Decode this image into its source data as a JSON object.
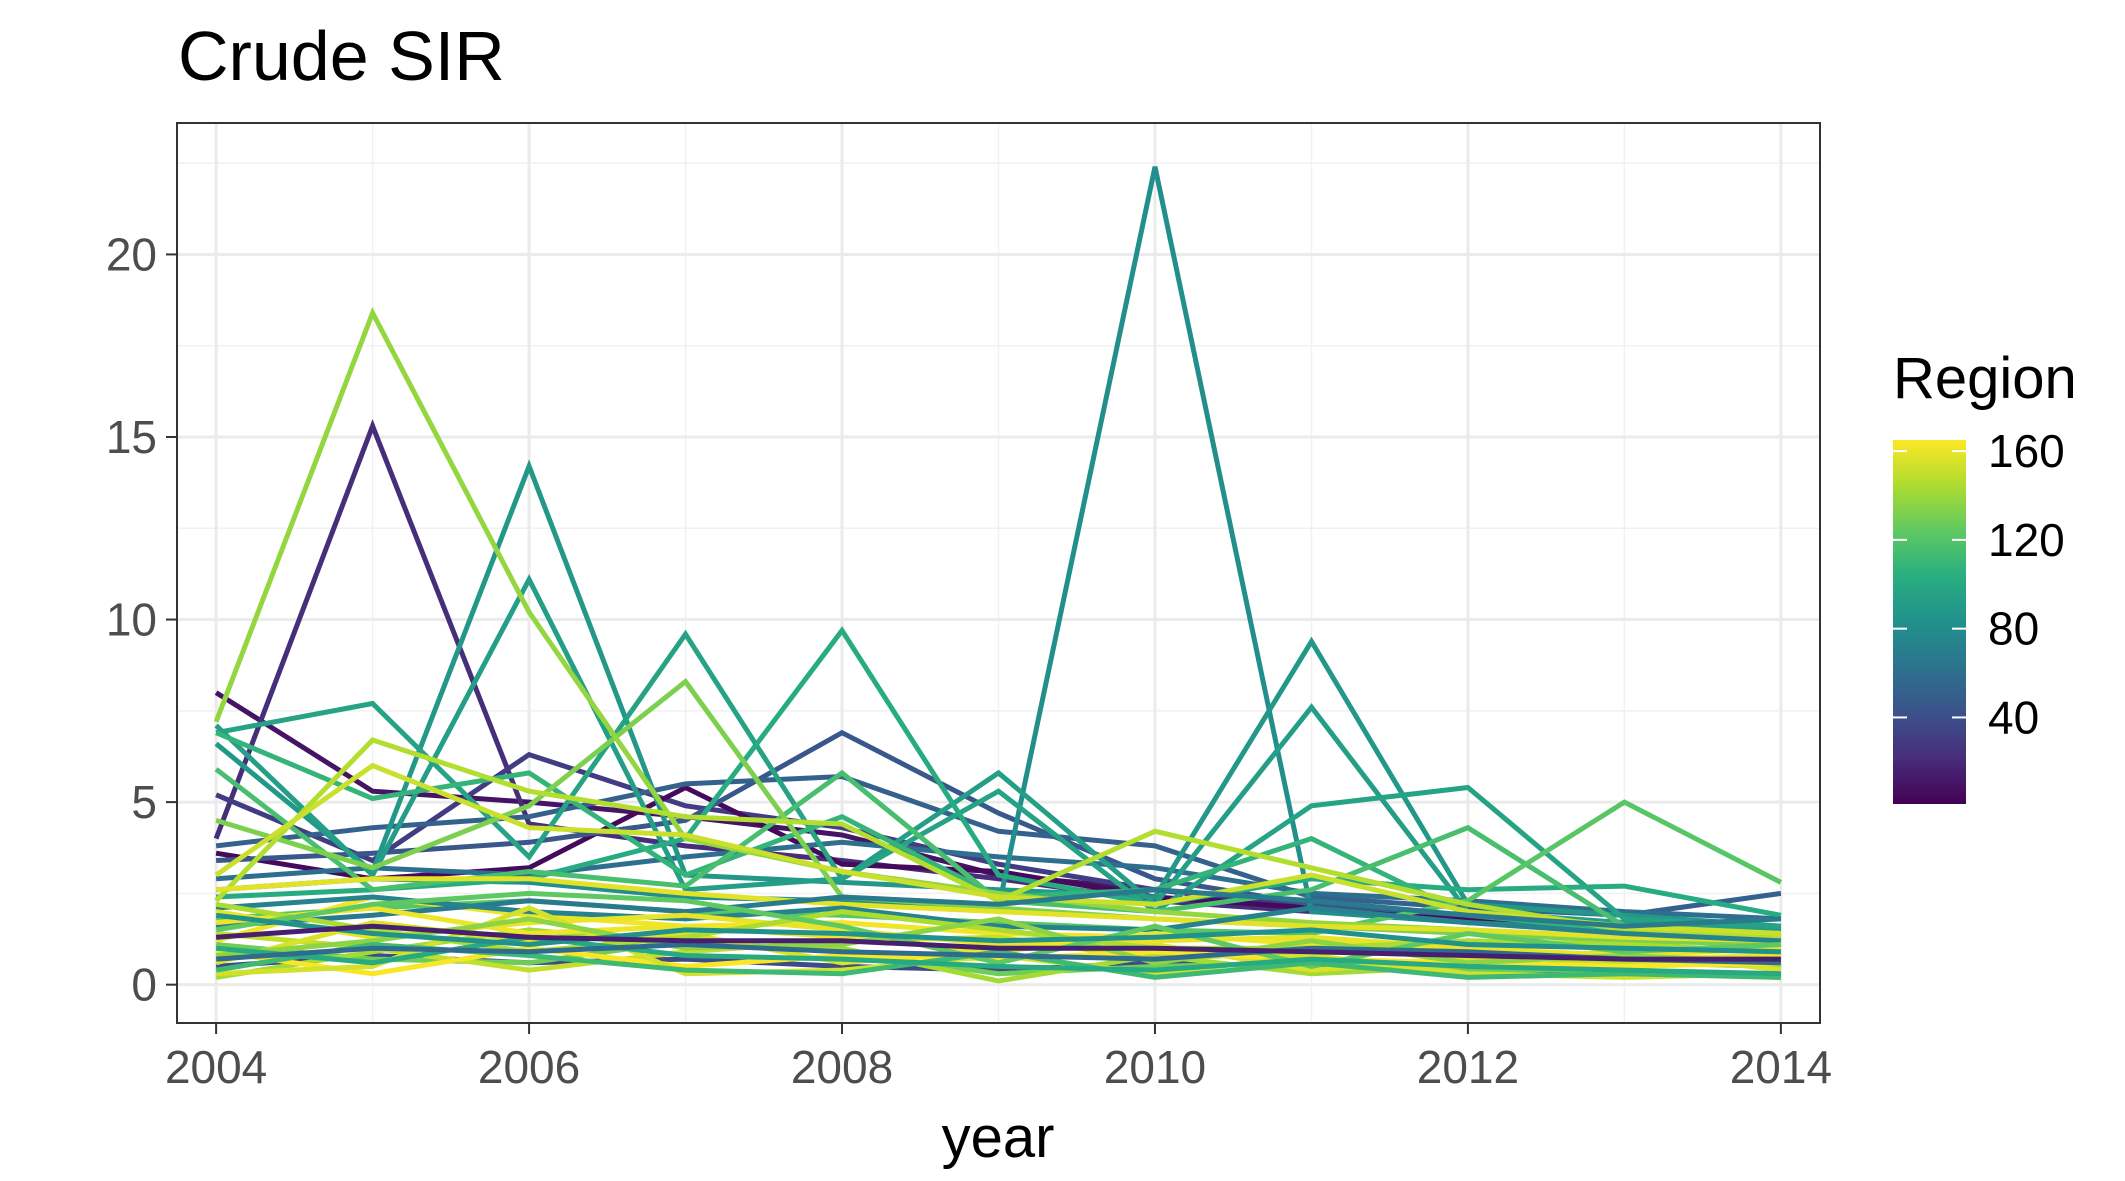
{
  "chart_data": {
    "type": "line",
    "title": "Crude SIR",
    "xlabel": "year",
    "ylabel": "",
    "x": [
      2004,
      2005,
      2006,
      2007,
      2008,
      2009,
      2010,
      2011,
      2012,
      2013,
      2014
    ],
    "x_ticks": [
      "2004",
      "2006",
      "2008",
      "2010",
      "2012",
      "2014"
    ],
    "y_ticks": [
      "0",
      "5",
      "10",
      "15",
      "20"
    ],
    "xlim": [
      2003.75,
      2014.25
    ],
    "ylim": [
      -1.05,
      23.6
    ],
    "grid": true,
    "colorbar": {
      "title": "Region",
      "ticks": [
        "40",
        "80",
        "120",
        "160"
      ],
      "range": [
        1,
        165
      ],
      "colormap": "viridis",
      "placement": "right"
    },
    "series": [
      {
        "region": 10,
        "values": [
          8.0,
          5.3,
          5.0,
          4.6,
          4.1,
          3.0,
          2.6,
          2.1,
          1.9,
          1.7,
          1.6
        ]
      },
      {
        "region": 22,
        "values": [
          4.0,
          15.3,
          4.4,
          3.8,
          3.4,
          2.9,
          2.3,
          2.0,
          1.8,
          1.6,
          1.5
        ]
      },
      {
        "region": 30,
        "values": [
          5.2,
          3.4,
          6.3,
          4.9,
          4.3,
          3.3,
          2.6,
          2.2,
          1.9,
          1.7,
          1.5
        ]
      },
      {
        "region": 5,
        "values": [
          3.6,
          2.9,
          3.2,
          5.4,
          3.3,
          3.1,
          2.4,
          2.1,
          1.8,
          1.5,
          1.4
        ]
      },
      {
        "region": 45,
        "values": [
          3.4,
          3.6,
          3.9,
          4.5,
          6.9,
          4.7,
          2.9,
          2.2,
          1.9,
          1.7,
          1.6
        ]
      },
      {
        "region": 52,
        "values": [
          3.8,
          4.3,
          4.6,
          5.5,
          5.7,
          4.2,
          3.8,
          2.4,
          2.1,
          1.9,
          2.5
        ]
      },
      {
        "region": 60,
        "values": [
          2.9,
          3.2,
          3.0,
          3.5,
          3.9,
          3.5,
          3.2,
          2.5,
          2.3,
          2.0,
          1.8
        ]
      },
      {
        "region": 82,
        "values": [
          2.6,
          2.9,
          2.8,
          2.4,
          2.3,
          2.1,
          22.4,
          2.0,
          1.7,
          1.5,
          1.4
        ]
      },
      {
        "region": 88,
        "values": [
          6.6,
          3.1,
          14.2,
          3.0,
          2.8,
          2.6,
          2.4,
          9.4,
          2.2,
          1.9,
          1.6
        ]
      },
      {
        "region": 92,
        "values": [
          7.1,
          3.0,
          11.1,
          2.6,
          2.9,
          5.8,
          2.2,
          7.6,
          2.0,
          1.7,
          1.5
        ]
      },
      {
        "region": 96,
        "values": [
          6.9,
          7.7,
          3.5,
          9.6,
          2.9,
          5.3,
          2.0,
          4.9,
          5.4,
          1.8,
          1.6
        ]
      },
      {
        "region": 102,
        "values": [
          2.4,
          2.6,
          2.9,
          4.0,
          9.7,
          3.0,
          2.2,
          2.9,
          2.6,
          2.7,
          1.9
        ]
      },
      {
        "region": 108,
        "values": [
          6.9,
          5.1,
          5.8,
          3.0,
          4.6,
          2.4,
          2.6,
          4.0,
          1.9,
          1.5,
          1.3
        ]
      },
      {
        "region": 116,
        "values": [
          5.9,
          2.6,
          3.1,
          2.7,
          5.8,
          2.3,
          2.0,
          2.6,
          4.3,
          1.6,
          1.4
        ]
      },
      {
        "region": 122,
        "values": [
          1.8,
          2.1,
          2.3,
          2.0,
          1.9,
          1.7,
          1.5,
          1.4,
          2.3,
          5.0,
          2.8
        ]
      },
      {
        "region": 132,
        "values": [
          4.5,
          3.2,
          4.9,
          8.3,
          2.4,
          2.1,
          1.8,
          1.6,
          1.4,
          1.2,
          1.1
        ]
      },
      {
        "region": 138,
        "values": [
          7.2,
          18.4,
          10.2,
          4.0,
          3.1,
          2.5,
          2.0,
          1.7,
          1.5,
          1.3,
          1.2
        ]
      },
      {
        "region": 146,
        "values": [
          2.3,
          6.7,
          5.3,
          4.6,
          4.4,
          2.3,
          4.2,
          3.2,
          2.2,
          1.5,
          1.3
        ]
      },
      {
        "region": 152,
        "values": [
          3.0,
          6.0,
          4.3,
          4.1,
          3.1,
          2.4,
          2.2,
          3.0,
          2.0,
          1.6,
          1.4
        ]
      },
      {
        "region": 158,
        "values": [
          2.6,
          2.9,
          2.9,
          2.5,
          2.2,
          2.0,
          1.8,
          1.6,
          1.5,
          1.3,
          1.2
        ]
      },
      {
        "region": 162,
        "values": [
          1.2,
          2.4,
          1.9,
          1.6,
          1.7,
          1.4,
          1.3,
          1.2,
          1.1,
          1.0,
          0.9
        ]
      },
      {
        "region": 68,
        "values": [
          1.6,
          1.9,
          2.3,
          2.0,
          2.4,
          2.2,
          2.6,
          2.3,
          1.9,
          1.6,
          1.8
        ]
      },
      {
        "region": 74,
        "values": [
          2.1,
          2.4,
          2.0,
          1.8,
          2.1,
          1.6,
          1.5,
          2.1,
          1.7,
          1.4,
          1.2
        ]
      },
      {
        "region": 38,
        "values": [
          0.5,
          0.8,
          0.6,
          0.7,
          0.5,
          0.4,
          0.6,
          0.5,
          0.4,
          0.3,
          0.3
        ]
      },
      {
        "region": 128,
        "values": [
          1.1,
          0.7,
          0.6,
          1.2,
          0.9,
          0.3,
          0.5,
          0.6,
          0.4,
          0.4,
          0.2
        ]
      },
      {
        "region": 142,
        "values": [
          0.2,
          0.9,
          1.5,
          1.1,
          1.0,
          0.1,
          0.8,
          0.3,
          0.5,
          0.6,
          0.5
        ]
      },
      {
        "region": 150,
        "values": [
          1.4,
          1.0,
          0.4,
          0.9,
          1.2,
          1.3,
          0.7,
          0.9,
          0.8,
          0.6,
          0.7
        ]
      },
      {
        "region": 156,
        "values": [
          0.6,
          1.7,
          1.2,
          1.4,
          0.6,
          1.0,
          1.1,
          0.4,
          0.7,
          0.9,
          0.4
        ]
      },
      {
        "region": 160,
        "values": [
          2.0,
          1.3,
          1.7,
          1.9,
          1.5,
          1.1,
          1.2,
          1.3,
          1.0,
          0.8,
          1.0
        ]
      },
      {
        "region": 164,
        "values": [
          0.9,
          0.3,
          1.0,
          0.5,
          0.8,
          0.7,
          0.9,
          0.7,
          0.6,
          0.5,
          0.6
        ]
      },
      {
        "region": 161,
        "values": [
          1.7,
          2.1,
          1.4,
          1.6,
          1.3,
          0.9,
          1.4,
          1.1,
          0.9,
          0.7,
          0.8
        ]
      },
      {
        "region": 154,
        "values": [
          0.3,
          0.5,
          2.1,
          0.3,
          0.4,
          0.8,
          0.3,
          0.8,
          0.3,
          0.2,
          0.3
        ]
      },
      {
        "region": 144,
        "values": [
          2.2,
          1.5,
          0.9,
          1.3,
          2.0,
          1.5,
          1.0,
          1.0,
          1.2,
          1.1,
          0.9
        ]
      },
      {
        "region": 136,
        "values": [
          0.8,
          1.2,
          1.8,
          1.0,
          1.1,
          1.8,
          0.6,
          1.2,
          0.6,
          0.8,
          0.6
        ]
      },
      {
        "region": 124,
        "values": [
          1.5,
          2.2,
          2.5,
          2.3,
          1.6,
          0.6,
          1.6,
          0.5,
          1.4,
          0.9,
          1.1
        ]
      },
      {
        "region": 112,
        "values": [
          0.4,
          1.1,
          0.8,
          0.4,
          0.3,
          0.9,
          0.2,
          0.6,
          0.2,
          0.3,
          0.2
        ]
      },
      {
        "region": 100,
        "values": [
          1.0,
          0.6,
          1.3,
          0.8,
          0.7,
          0.5,
          0.4,
          0.7,
          0.5,
          0.4,
          0.3
        ]
      },
      {
        "region": 84,
        "values": [
          1.9,
          1.4,
          1.1,
          1.5,
          1.4,
          1.2,
          1.3,
          1.5,
          1.1,
          1.0,
          0.9
        ]
      },
      {
        "region": 58,
        "values": [
          0.7,
          1.0,
          0.9,
          1.1,
          0.9,
          0.8,
          0.7,
          1.0,
          0.9,
          0.7,
          0.6
        ]
      },
      {
        "region": 15,
        "values": [
          1.3,
          1.6,
          1.3,
          1.2,
          1.2,
          1.0,
          1.0,
          0.9,
          0.8,
          0.7,
          0.7
        ]
      }
    ]
  }
}
